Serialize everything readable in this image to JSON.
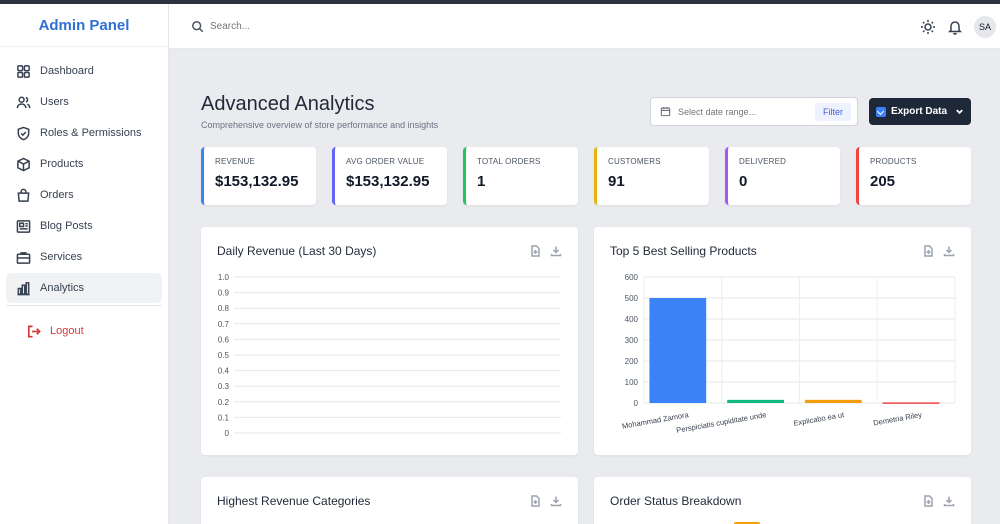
{
  "brand": "Admin Panel",
  "nav": {
    "items": [
      {
        "label": "Dashboard",
        "icon": "dashboard-icon"
      },
      {
        "label": "Users",
        "icon": "users-icon"
      },
      {
        "label": "Roles & Permissions",
        "icon": "shield-icon"
      },
      {
        "label": "Products",
        "icon": "box-icon"
      },
      {
        "label": "Orders",
        "icon": "shopping-bag-icon"
      },
      {
        "label": "Blog Posts",
        "icon": "newspaper-icon"
      },
      {
        "label": "Services",
        "icon": "briefcase-icon"
      },
      {
        "label": "Analytics",
        "icon": "bar-chart-icon",
        "active": true
      }
    ],
    "logout": "Logout"
  },
  "header": {
    "search_placeholder": "Search...",
    "avatar": "SA"
  },
  "page": {
    "title": "Advanced Analytics",
    "subtitle": "Comprehensive overview of store performance and insights",
    "date_placeholder": "Select date range...",
    "filter_label": "Filter",
    "export_label": "Export Data"
  },
  "stats": [
    {
      "label": "REVENUE",
      "value": "$153,132.95",
      "color": "#3b82f6"
    },
    {
      "label": "AVG ORDER VALUE",
      "value": "$153,132.95",
      "color": "#6366f1"
    },
    {
      "label": "TOTAL ORDERS",
      "value": "1",
      "color": "#22c55e"
    },
    {
      "label": "CUSTOMERS",
      "value": "91",
      "color": "#eab308"
    },
    {
      "label": "DELIVERED",
      "value": "0",
      "color": "#a855f7"
    },
    {
      "label": "PRODUCTS",
      "value": "205",
      "color": "#ef4444"
    }
  ],
  "cards": {
    "daily_revenue": "Daily Revenue (Last 30 Days)",
    "top_products": "Top 5 Best Selling Products",
    "revenue_categories": "Highest Revenue Categories",
    "order_status": "Order Status Breakdown"
  },
  "chart_data": [
    {
      "type": "line",
      "title": "Daily Revenue (Last 30 Days)",
      "x": [],
      "series": [],
      "ylim": [
        0,
        1.0
      ],
      "yticks": [
        "1.0",
        "0.9",
        "0.8",
        "0.7",
        "0.6",
        "0.5",
        "0.4",
        "0.3",
        "0.2",
        "0.1",
        "0"
      ],
      "grid": true
    },
    {
      "type": "bar",
      "title": "Top 5 Best Selling Products",
      "categories": [
        "Mohammad Zamora",
        "Perspiciatis cupiditate unde",
        "Explicabo ea ut",
        "Demetria Riley"
      ],
      "values": [
        500,
        15,
        15,
        3
      ],
      "colors": [
        "#3b82f6",
        "#10b981",
        "#f59e0b",
        "#ef4444"
      ],
      "ylim": [
        0,
        600
      ],
      "yticks": [
        "600",
        "500",
        "400",
        "300",
        "200",
        "100",
        "0"
      ],
      "grid": true
    }
  ]
}
